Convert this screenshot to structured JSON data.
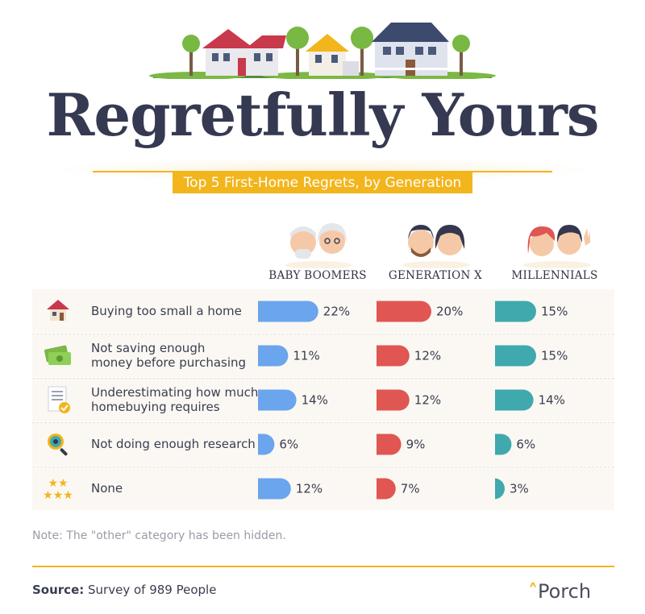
{
  "header": {
    "title": "Regretfully Yours",
    "subtitle": "Top 5 First-Home Regrets, by Generation"
  },
  "colors": {
    "baby_boomers": "#6aa5ee",
    "generation_x": "#e05652",
    "millennials": "#3fa9ad",
    "accent": "#f2b51c"
  },
  "chart_data": {
    "type": "bar",
    "categories": [
      "Buying too small a home",
      "Not saving enough money before purchasing",
      "Underestimating how much homebuying requires",
      "Not doing enough research",
      "None"
    ],
    "category_lines": [
      [
        "Buying too small a home"
      ],
      [
        "Not saving enough",
        "money before purchasing"
      ],
      [
        "Underestimating how much",
        "homebuying requires"
      ],
      [
        "Not doing enough research"
      ],
      [
        "None"
      ]
    ],
    "category_icons": [
      "house-icon",
      "money-icon",
      "checklist-icon",
      "magnifier-icon",
      "stars-icon"
    ],
    "unit": "%",
    "series": [
      {
        "name": "BABY BOOMERS",
        "values": [
          22,
          11,
          14,
          6,
          12
        ]
      },
      {
        "name": "GENERATION X",
        "values": [
          20,
          12,
          12,
          9,
          7
        ]
      },
      {
        "name": "MILLENNIALS",
        "values": [
          15,
          15,
          14,
          6,
          3
        ]
      }
    ]
  },
  "footer": {
    "note": "Note: The \"other\" category has been hidden.",
    "source_label": "Source:",
    "source_text": " Survey of 989 People",
    "brand": "Porch"
  }
}
